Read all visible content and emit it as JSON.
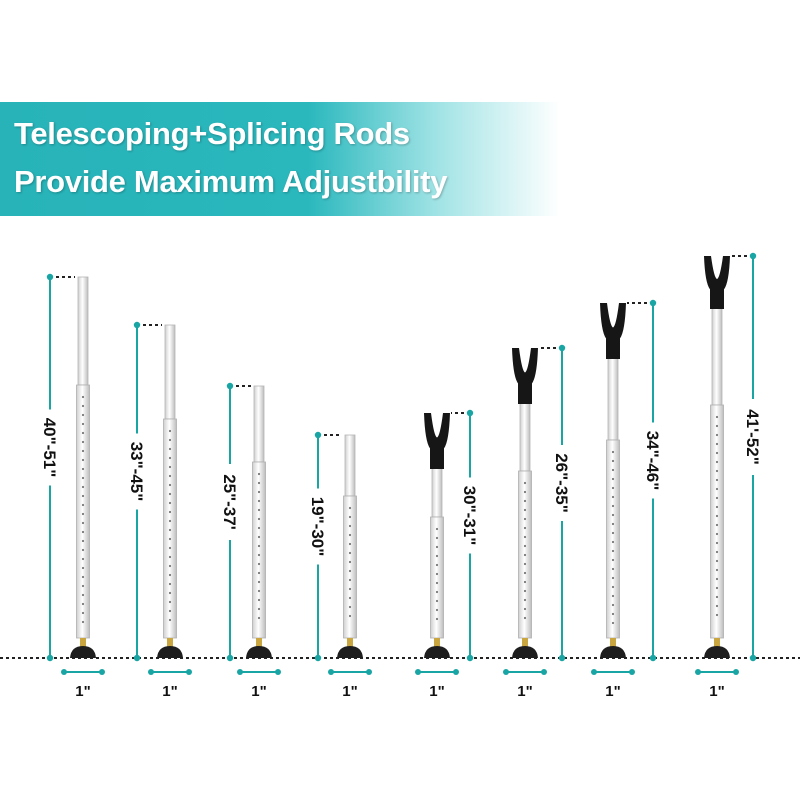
{
  "banner": {
    "line1": "Telescoping+Splicing Rods",
    "line2": "Provide Maximum Adjustbility",
    "color": "#29b6bb"
  },
  "accent_color": "#1aa5a5",
  "rods": [
    {
      "height_label": "40\"-51\"",
      "width_label": "1\"",
      "has_fork": false
    },
    {
      "height_label": "33\"-45\"",
      "width_label": "1\"",
      "has_fork": false
    },
    {
      "height_label": "25\"-37'",
      "width_label": "1\"",
      "has_fork": false
    },
    {
      "height_label": "19\"-30\"",
      "width_label": "1\"",
      "has_fork": false
    },
    {
      "height_label": "30\"-31\"",
      "width_label": "1\"",
      "has_fork": true
    },
    {
      "height_label": "26\"-35\"",
      "width_label": "1\"",
      "has_fork": true
    },
    {
      "height_label": "34\"-46\"",
      "width_label": "1\"",
      "has_fork": true
    },
    {
      "height_label": "41'-52\"",
      "width_label": "1\"",
      "has_fork": true
    }
  ]
}
